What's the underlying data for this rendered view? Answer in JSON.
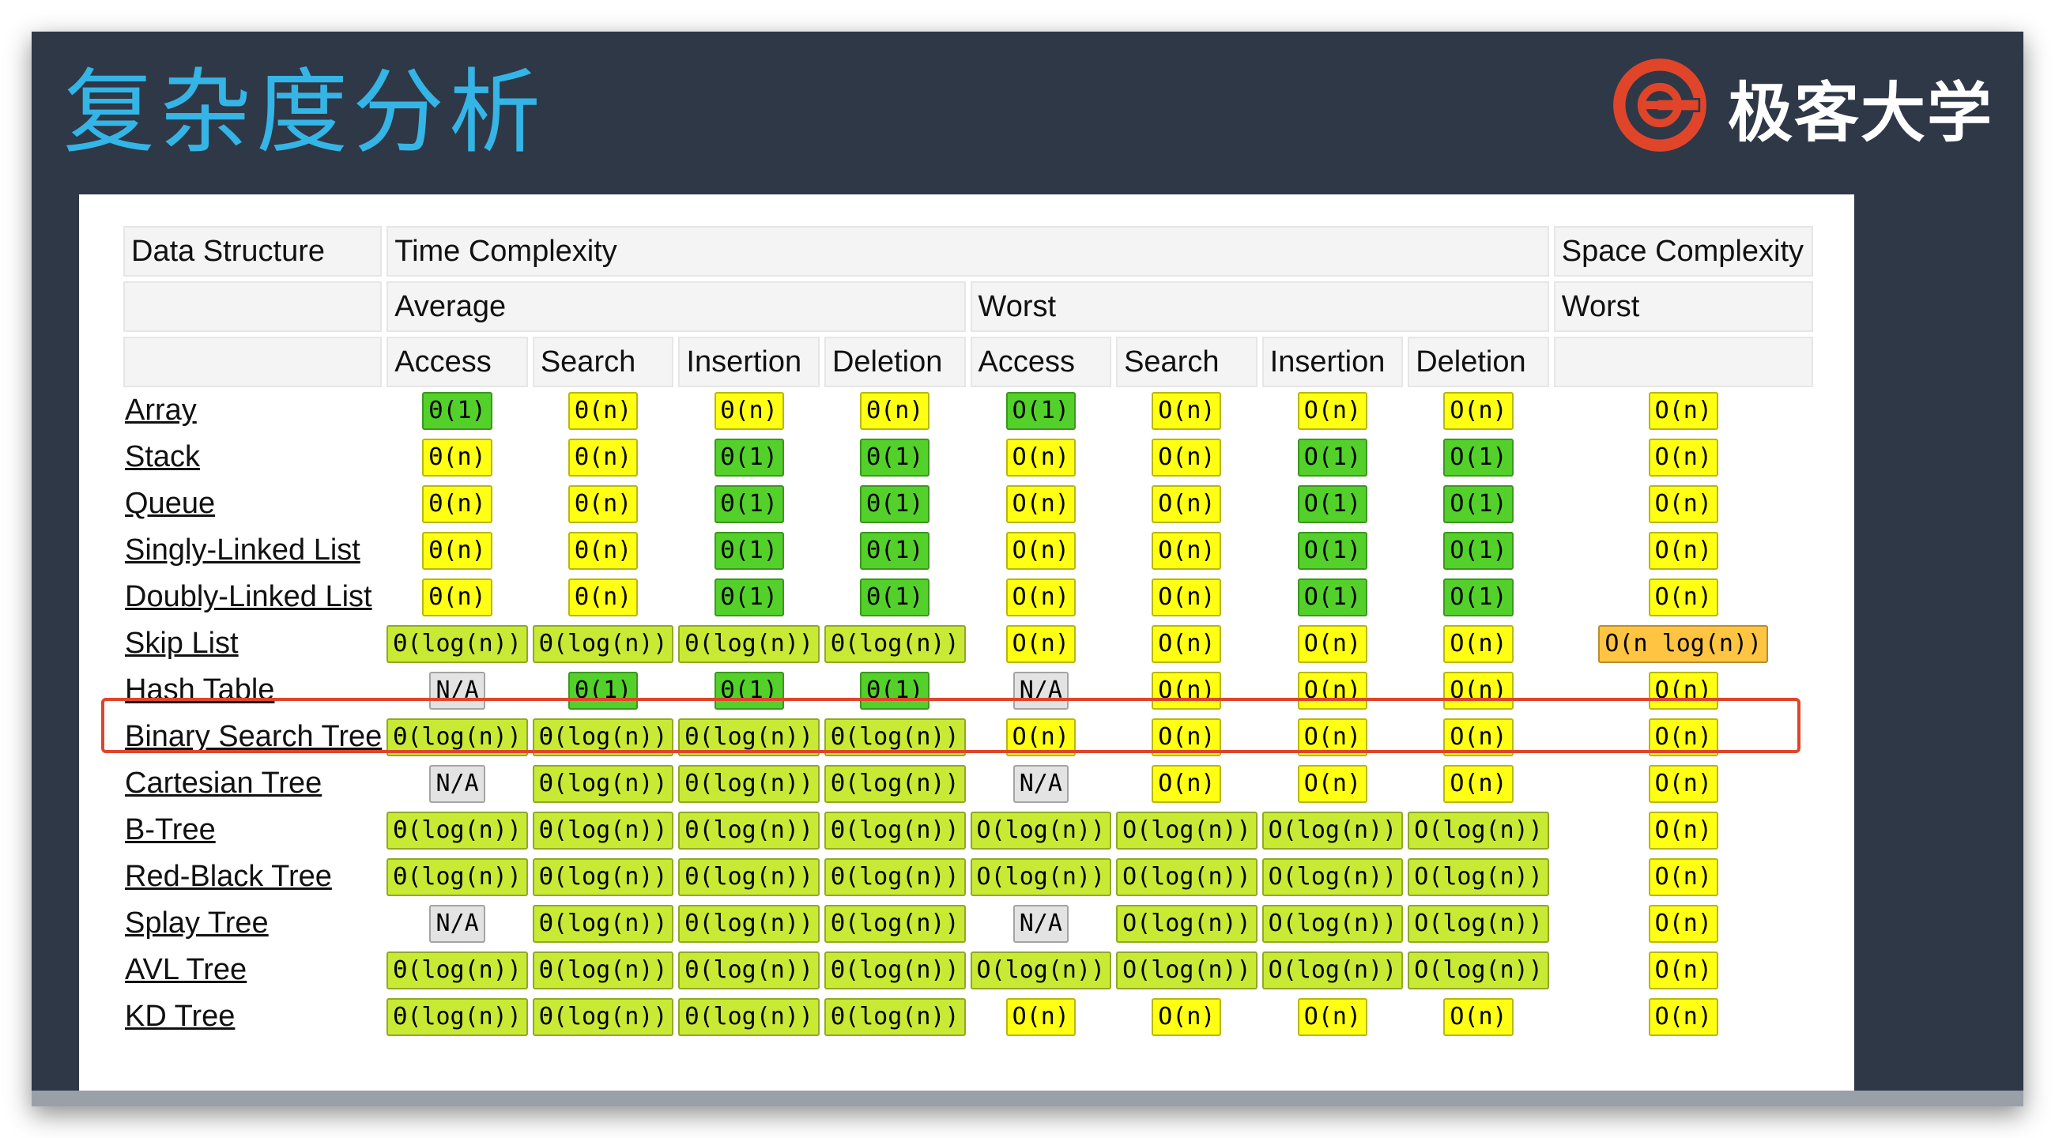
{
  "slide": {
    "title": "复杂度分析",
    "logo_text": "极客大学",
    "logo_icon": "geek-university-logo-icon",
    "colors": {
      "title": "#35b4e6",
      "logo": "#e0452a",
      "highlight": "#e0452a"
    }
  },
  "table": {
    "headers": {
      "data_structure": "Data Structure",
      "time_complexity": "Time Complexity",
      "space_complexity": "Space Complexity",
      "average": "Average",
      "worst_time": "Worst",
      "worst_space": "Worst",
      "ops": [
        "Access",
        "Search",
        "Insertion",
        "Deletion",
        "Access",
        "Search",
        "Insertion",
        "Deletion"
      ]
    },
    "color_legend": {
      "good": "#53d12a",
      "fair": "#ffff13",
      "ok": "#c8ea34",
      "bad": "#ffc542",
      "na": "#e3e3e3"
    },
    "highlighted_row": "Hash Table",
    "rows": [
      {
        "name": "Array",
        "cells": [
          {
            "text": "Θ(1)",
            "rating": "good"
          },
          {
            "text": "Θ(n)",
            "rating": "fair"
          },
          {
            "text": "Θ(n)",
            "rating": "fair"
          },
          {
            "text": "Θ(n)",
            "rating": "fair"
          },
          {
            "text": "O(1)",
            "rating": "good"
          },
          {
            "text": "O(n)",
            "rating": "fair"
          },
          {
            "text": "O(n)",
            "rating": "fair"
          },
          {
            "text": "O(n)",
            "rating": "fair"
          },
          {
            "text": "O(n)",
            "rating": "fair"
          }
        ]
      },
      {
        "name": "Stack",
        "cells": [
          {
            "text": "Θ(n)",
            "rating": "fair"
          },
          {
            "text": "Θ(n)",
            "rating": "fair"
          },
          {
            "text": "Θ(1)",
            "rating": "good"
          },
          {
            "text": "Θ(1)",
            "rating": "good"
          },
          {
            "text": "O(n)",
            "rating": "fair"
          },
          {
            "text": "O(n)",
            "rating": "fair"
          },
          {
            "text": "O(1)",
            "rating": "good"
          },
          {
            "text": "O(1)",
            "rating": "good"
          },
          {
            "text": "O(n)",
            "rating": "fair"
          }
        ]
      },
      {
        "name": "Queue",
        "cells": [
          {
            "text": "Θ(n)",
            "rating": "fair"
          },
          {
            "text": "Θ(n)",
            "rating": "fair"
          },
          {
            "text": "Θ(1)",
            "rating": "good"
          },
          {
            "text": "Θ(1)",
            "rating": "good"
          },
          {
            "text": "O(n)",
            "rating": "fair"
          },
          {
            "text": "O(n)",
            "rating": "fair"
          },
          {
            "text": "O(1)",
            "rating": "good"
          },
          {
            "text": "O(1)",
            "rating": "good"
          },
          {
            "text": "O(n)",
            "rating": "fair"
          }
        ]
      },
      {
        "name": "Singly-Linked List",
        "cells": [
          {
            "text": "Θ(n)",
            "rating": "fair"
          },
          {
            "text": "Θ(n)",
            "rating": "fair"
          },
          {
            "text": "Θ(1)",
            "rating": "good"
          },
          {
            "text": "Θ(1)",
            "rating": "good"
          },
          {
            "text": "O(n)",
            "rating": "fair"
          },
          {
            "text": "O(n)",
            "rating": "fair"
          },
          {
            "text": "O(1)",
            "rating": "good"
          },
          {
            "text": "O(1)",
            "rating": "good"
          },
          {
            "text": "O(n)",
            "rating": "fair"
          }
        ]
      },
      {
        "name": "Doubly-Linked List",
        "cells": [
          {
            "text": "Θ(n)",
            "rating": "fair"
          },
          {
            "text": "Θ(n)",
            "rating": "fair"
          },
          {
            "text": "Θ(1)",
            "rating": "good"
          },
          {
            "text": "Θ(1)",
            "rating": "good"
          },
          {
            "text": "O(n)",
            "rating": "fair"
          },
          {
            "text": "O(n)",
            "rating": "fair"
          },
          {
            "text": "O(1)",
            "rating": "good"
          },
          {
            "text": "O(1)",
            "rating": "good"
          },
          {
            "text": "O(n)",
            "rating": "fair"
          }
        ]
      },
      {
        "name": "Skip List",
        "cells": [
          {
            "text": "Θ(log(n))",
            "rating": "ok"
          },
          {
            "text": "Θ(log(n))",
            "rating": "ok"
          },
          {
            "text": "Θ(log(n))",
            "rating": "ok"
          },
          {
            "text": "Θ(log(n))",
            "rating": "ok"
          },
          {
            "text": "O(n)",
            "rating": "fair"
          },
          {
            "text": "O(n)",
            "rating": "fair"
          },
          {
            "text": "O(n)",
            "rating": "fair"
          },
          {
            "text": "O(n)",
            "rating": "fair"
          },
          {
            "text": "O(n log(n))",
            "rating": "bad"
          }
        ]
      },
      {
        "name": "Hash Table",
        "cells": [
          {
            "text": "N/A",
            "rating": "na"
          },
          {
            "text": "Θ(1)",
            "rating": "good"
          },
          {
            "text": "Θ(1)",
            "rating": "good"
          },
          {
            "text": "Θ(1)",
            "rating": "good"
          },
          {
            "text": "N/A",
            "rating": "na"
          },
          {
            "text": "O(n)",
            "rating": "fair"
          },
          {
            "text": "O(n)",
            "rating": "fair"
          },
          {
            "text": "O(n)",
            "rating": "fair"
          },
          {
            "text": "O(n)",
            "rating": "fair"
          }
        ]
      },
      {
        "name": "Binary Search Tree",
        "cells": [
          {
            "text": "Θ(log(n))",
            "rating": "ok"
          },
          {
            "text": "Θ(log(n))",
            "rating": "ok"
          },
          {
            "text": "Θ(log(n))",
            "rating": "ok"
          },
          {
            "text": "Θ(log(n))",
            "rating": "ok"
          },
          {
            "text": "O(n)",
            "rating": "fair"
          },
          {
            "text": "O(n)",
            "rating": "fair"
          },
          {
            "text": "O(n)",
            "rating": "fair"
          },
          {
            "text": "O(n)",
            "rating": "fair"
          },
          {
            "text": "O(n)",
            "rating": "fair"
          }
        ]
      },
      {
        "name": "Cartesian Tree",
        "cells": [
          {
            "text": "N/A",
            "rating": "na"
          },
          {
            "text": "Θ(log(n))",
            "rating": "ok"
          },
          {
            "text": "Θ(log(n))",
            "rating": "ok"
          },
          {
            "text": "Θ(log(n))",
            "rating": "ok"
          },
          {
            "text": "N/A",
            "rating": "na"
          },
          {
            "text": "O(n)",
            "rating": "fair"
          },
          {
            "text": "O(n)",
            "rating": "fair"
          },
          {
            "text": "O(n)",
            "rating": "fair"
          },
          {
            "text": "O(n)",
            "rating": "fair"
          }
        ]
      },
      {
        "name": "B-Tree",
        "cells": [
          {
            "text": "Θ(log(n))",
            "rating": "ok"
          },
          {
            "text": "Θ(log(n))",
            "rating": "ok"
          },
          {
            "text": "Θ(log(n))",
            "rating": "ok"
          },
          {
            "text": "Θ(log(n))",
            "rating": "ok"
          },
          {
            "text": "O(log(n))",
            "rating": "ok"
          },
          {
            "text": "O(log(n))",
            "rating": "ok"
          },
          {
            "text": "O(log(n))",
            "rating": "ok"
          },
          {
            "text": "O(log(n))",
            "rating": "ok"
          },
          {
            "text": "O(n)",
            "rating": "fair"
          }
        ]
      },
      {
        "name": "Red-Black Tree",
        "cells": [
          {
            "text": "Θ(log(n))",
            "rating": "ok"
          },
          {
            "text": "Θ(log(n))",
            "rating": "ok"
          },
          {
            "text": "Θ(log(n))",
            "rating": "ok"
          },
          {
            "text": "Θ(log(n))",
            "rating": "ok"
          },
          {
            "text": "O(log(n))",
            "rating": "ok"
          },
          {
            "text": "O(log(n))",
            "rating": "ok"
          },
          {
            "text": "O(log(n))",
            "rating": "ok"
          },
          {
            "text": "O(log(n))",
            "rating": "ok"
          },
          {
            "text": "O(n)",
            "rating": "fair"
          }
        ]
      },
      {
        "name": "Splay Tree",
        "cells": [
          {
            "text": "N/A",
            "rating": "na"
          },
          {
            "text": "Θ(log(n))",
            "rating": "ok"
          },
          {
            "text": "Θ(log(n))",
            "rating": "ok"
          },
          {
            "text": "Θ(log(n))",
            "rating": "ok"
          },
          {
            "text": "N/A",
            "rating": "na"
          },
          {
            "text": "O(log(n))",
            "rating": "ok"
          },
          {
            "text": "O(log(n))",
            "rating": "ok"
          },
          {
            "text": "O(log(n))",
            "rating": "ok"
          },
          {
            "text": "O(n)",
            "rating": "fair"
          }
        ]
      },
      {
        "name": "AVL Tree",
        "cells": [
          {
            "text": "Θ(log(n))",
            "rating": "ok"
          },
          {
            "text": "Θ(log(n))",
            "rating": "ok"
          },
          {
            "text": "Θ(log(n))",
            "rating": "ok"
          },
          {
            "text": "Θ(log(n))",
            "rating": "ok"
          },
          {
            "text": "O(log(n))",
            "rating": "ok"
          },
          {
            "text": "O(log(n))",
            "rating": "ok"
          },
          {
            "text": "O(log(n))",
            "rating": "ok"
          },
          {
            "text": "O(log(n))",
            "rating": "ok"
          },
          {
            "text": "O(n)",
            "rating": "fair"
          }
        ]
      },
      {
        "name": "KD Tree",
        "cells": [
          {
            "text": "Θ(log(n))",
            "rating": "ok"
          },
          {
            "text": "Θ(log(n))",
            "rating": "ok"
          },
          {
            "text": "Θ(log(n))",
            "rating": "ok"
          },
          {
            "text": "Θ(log(n))",
            "rating": "ok"
          },
          {
            "text": "O(n)",
            "rating": "fair"
          },
          {
            "text": "O(n)",
            "rating": "fair"
          },
          {
            "text": "O(n)",
            "rating": "fair"
          },
          {
            "text": "O(n)",
            "rating": "fair"
          },
          {
            "text": "O(n)",
            "rating": "fair"
          }
        ]
      }
    ]
  }
}
